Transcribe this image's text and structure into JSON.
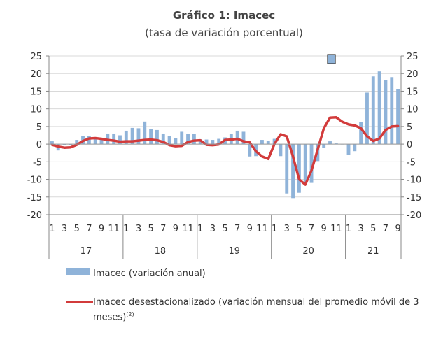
{
  "chart_data": {
    "type": "bar+line",
    "title": "Gráfico 1: Imacec",
    "subtitle": "(tasa de variación porcentual)",
    "ylim": [
      -20,
      25
    ],
    "yticks": [
      -20,
      -15,
      -10,
      -5,
      0,
      5,
      10,
      15,
      20,
      25
    ],
    "month_labels": [
      "1",
      "3",
      "5",
      "7",
      "9",
      "11",
      "1",
      "3",
      "5",
      "7",
      "9",
      "11",
      "1",
      "3",
      "5",
      "7",
      "9",
      "11",
      "1",
      "3",
      "5",
      "7",
      "9",
      "11",
      "1",
      "3",
      "5",
      "7",
      "9"
    ],
    "years": [
      {
        "label": "17",
        "months": 12
      },
      {
        "label": "18",
        "months": 12
      },
      {
        "label": "19",
        "months": 12
      },
      {
        "label": "20",
        "months": 12
      },
      {
        "label": "21",
        "months": 9
      }
    ],
    "series": [
      {
        "name": "Imacec (variación anual)",
        "kind": "bar",
        "color": "#8fb3d9",
        "values": [
          0.8,
          -1.8,
          -0.3,
          -0.3,
          1.2,
          2.3,
          2.2,
          2.0,
          1.7,
          3.0,
          3.0,
          2.5,
          3.8,
          4.6,
          4.5,
          6.4,
          4.2,
          4.0,
          3.0,
          2.4,
          1.8,
          3.5,
          2.8,
          2.8,
          1.4,
          1.3,
          1.2,
          1.5,
          1.9,
          2.9,
          3.8,
          3.5,
          -3.5,
          -3.4,
          1.2,
          1.0,
          1.5,
          -3.4,
          -14.0,
          -15.3,
          -13.8,
          -10.9,
          -11.0,
          -4.8,
          -1.0,
          0.8,
          0.2,
          -0.1,
          -3.0,
          -2.0,
          6.2,
          14.6,
          19.2,
          20.6,
          18.1,
          19.0,
          15.6
        ]
      },
      {
        "name": "Imacec desestacionalizado (variación mensual del promedio móvil de 3 meses)",
        "kind": "line",
        "color": "#d23b3b",
        "values": [
          -0.2,
          -0.7,
          -1.0,
          -0.9,
          -0.2,
          0.9,
          1.6,
          1.7,
          1.5,
          1.2,
          1.0,
          0.7,
          0.8,
          0.8,
          1.0,
          1.2,
          1.3,
          1.1,
          0.6,
          -0.3,
          -0.6,
          -0.5,
          0.6,
          1.0,
          1.1,
          -0.2,
          -0.3,
          -0.1,
          1.2,
          1.3,
          1.5,
          0.8,
          0.5,
          -2.0,
          -3.5,
          -4.2,
          0.0,
          2.8,
          2.2,
          -3.5,
          -10.0,
          -11.5,
          -7.5,
          -1.5,
          4.5,
          7.5,
          7.6,
          6.3,
          5.6,
          5.3,
          4.5,
          2.2,
          0.9,
          1.6,
          4.0,
          5.0,
          5.1
        ]
      }
    ],
    "legend_items": [
      {
        "label": "Imacec (variación anual)"
      },
      {
        "label": "Imacec desestacionalizado (variación mensual del promedio móvil de 3 meses)",
        "footnote": "(2)"
      }
    ]
  }
}
